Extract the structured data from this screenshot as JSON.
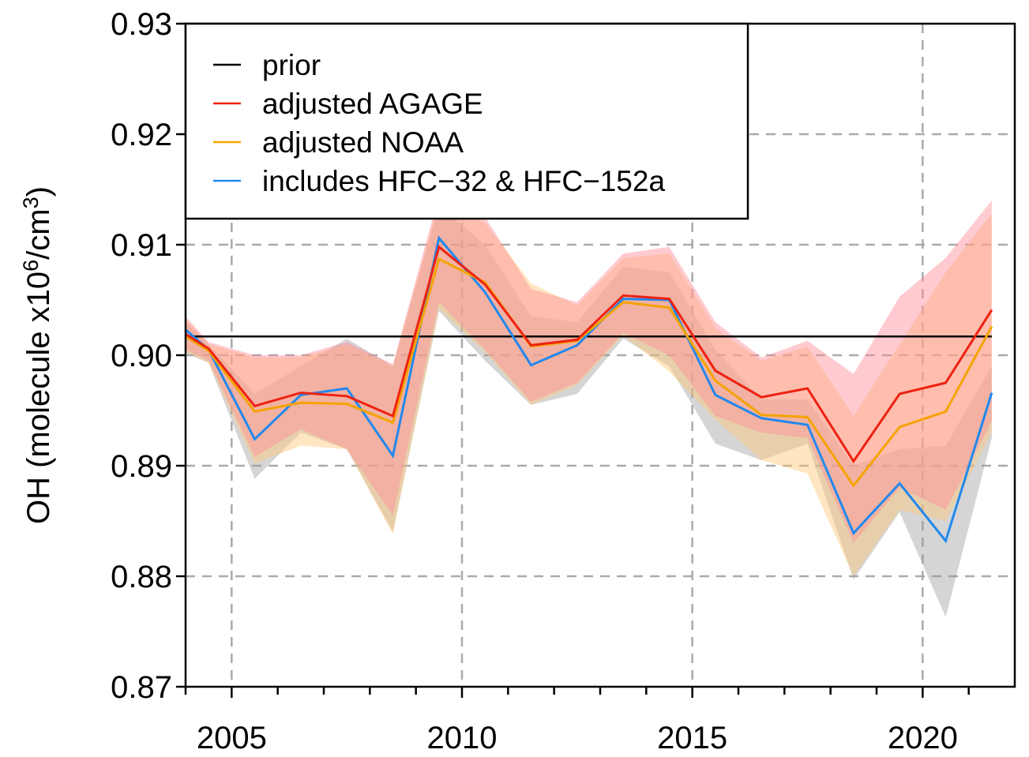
{
  "chart_data": {
    "type": "line",
    "title": "",
    "xlabel": "",
    "ylabel": "OH (molecule x10^6/cm^3)",
    "ylabel_parts": {
      "main": "OH (molecule x10",
      "exp1": "6",
      "mid": "/cm",
      "exp2": "3",
      "end": ")"
    },
    "xlim": [
      2004,
      2022
    ],
    "ylim": [
      0.87,
      0.93
    ],
    "x_ticks": [
      2005,
      2010,
      2015,
      2020
    ],
    "x_tick_labels": [
      "2005",
      "2010",
      "2015",
      "2020"
    ],
    "y_ticks": [
      0.87,
      0.88,
      0.89,
      0.9,
      0.91,
      0.92,
      0.93
    ],
    "y_tick_labels": [
      "0.87",
      "0.88",
      "0.89",
      "0.90",
      "0.91",
      "0.92",
      "0.93"
    ],
    "grid": true,
    "legend_position": "top-left",
    "x": [
      2004.0,
      2004.5,
      2005.5,
      2006.5,
      2007.5,
      2008.5,
      2009.5,
      2010.5,
      2011.5,
      2012.5,
      2013.5,
      2014.5,
      2015.5,
      2016.5,
      2017.5,
      2018.5,
      2019.5,
      2020.5,
      2021.5
    ],
    "series": [
      {
        "name": "prior",
        "color": "#000000",
        "values": [
          0.9017,
          0.9017,
          0.9017,
          0.9017,
          0.9017,
          0.9017,
          0.9017,
          0.9017,
          0.9017,
          0.9017,
          0.9017,
          0.9017,
          0.9017,
          0.9017,
          0.9017,
          0.9017,
          0.9017,
          0.9017,
          0.9017
        ]
      },
      {
        "name": "adjusted AGAGE",
        "color": "#ee2211",
        "band_color": "rgba(255,140,150,0.45)",
        "values": [
          0.9019,
          0.9006,
          0.8954,
          0.8966,
          0.8963,
          0.8945,
          0.9098,
          0.9064,
          0.9009,
          0.9014,
          0.9054,
          0.9051,
          0.8986,
          0.8962,
          0.897,
          0.8904,
          0.8965,
          0.8975,
          0.9041
        ],
        "upper": [
          0.9035,
          0.9012,
          0.9,
          0.9,
          0.9012,
          0.8992,
          0.9145,
          0.9125,
          0.906,
          0.9048,
          0.9092,
          0.9098,
          0.903,
          0.8998,
          0.9013,
          0.8983,
          0.9053,
          0.9088,
          0.914
        ],
        "lower": [
          0.9005,
          0.8995,
          0.8908,
          0.8933,
          0.8915,
          0.8855,
          0.9048,
          0.9005,
          0.8958,
          0.8975,
          0.902,
          0.9,
          0.8945,
          0.893,
          0.8925,
          0.883,
          0.888,
          0.886,
          0.894
        ]
      },
      {
        "name": "adjusted NOAA",
        "color": "#f5a300",
        "band_color": "rgba(255,200,120,0.45)",
        "values": [
          0.9017,
          0.9004,
          0.8949,
          0.8957,
          0.8956,
          0.8939,
          0.9087,
          0.9066,
          0.9008,
          0.9013,
          0.9048,
          0.9043,
          0.8977,
          0.8946,
          0.8944,
          0.8882,
          0.8935,
          0.8949,
          0.9026
        ],
        "upper": [
          0.9033,
          0.901,
          0.8998,
          0.8998,
          0.901,
          0.899,
          0.914,
          0.912,
          0.9065,
          0.9045,
          0.9088,
          0.9092,
          0.9025,
          0.8995,
          0.9008,
          0.8945,
          0.901,
          0.9075,
          0.9128
        ],
        "lower": [
          0.9003,
          0.8993,
          0.8902,
          0.8918,
          0.8915,
          0.8838,
          0.9042,
          0.9003,
          0.8955,
          0.8973,
          0.9018,
          0.8985,
          0.8942,
          0.8905,
          0.8893,
          0.88,
          0.886,
          0.885,
          0.893
        ]
      },
      {
        "name": "includes HFC−32 & HFC−152a",
        "color": "#2288ee",
        "band_color": "rgba(150,150,150,0.4)",
        "values": [
          0.9023,
          0.9005,
          0.8924,
          0.8964,
          0.897,
          0.8909,
          0.9106,
          0.9057,
          0.8991,
          0.9009,
          0.9051,
          0.905,
          0.8964,
          0.8943,
          0.8937,
          0.8839,
          0.8884,
          0.8832,
          0.8966
        ],
        "upper": [
          0.903,
          0.901,
          0.8965,
          0.899,
          0.9015,
          0.899,
          0.9135,
          0.91,
          0.9035,
          0.903,
          0.908,
          0.9075,
          0.9005,
          0.896,
          0.896,
          0.89,
          0.8915,
          0.8918,
          0.899
        ],
        "lower": [
          0.9002,
          0.8993,
          0.8888,
          0.893,
          0.8915,
          0.884,
          0.904,
          0.8995,
          0.8955,
          0.8965,
          0.9015,
          0.899,
          0.892,
          0.8905,
          0.892,
          0.8797,
          0.8858,
          0.8763,
          0.8925
        ]
      }
    ]
  }
}
